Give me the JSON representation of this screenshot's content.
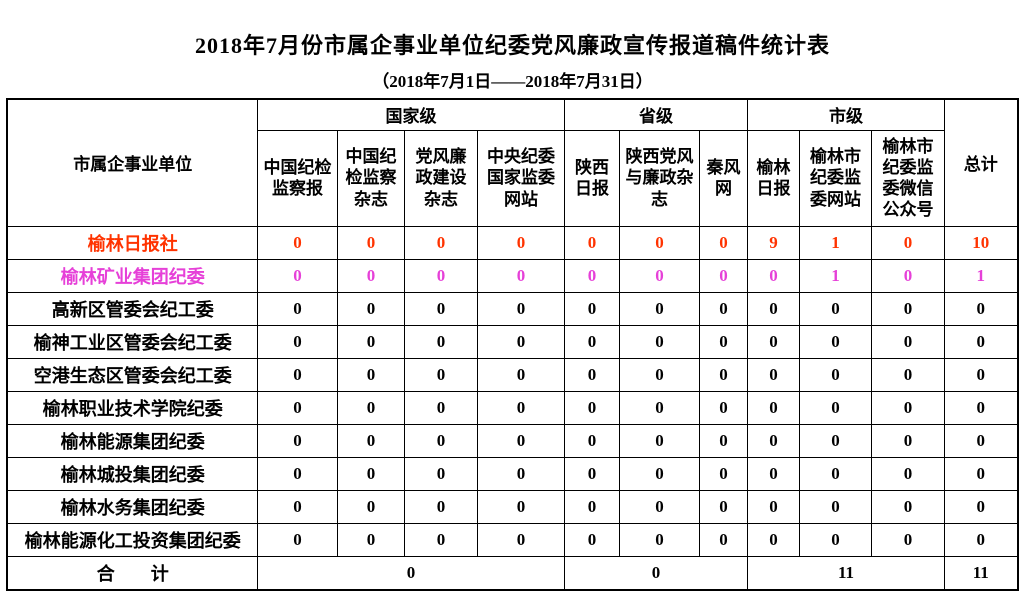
{
  "title": "2018年7月份市属企事业单位纪委党风廉政宣传报道稿件统计表",
  "subtitle": "（2018年7月1日——2018年7月31日）",
  "colors": {
    "row_highlight_red": "#FF3300",
    "row_highlight_magenta": "#E640D8",
    "text_default": "#000000"
  },
  "table": {
    "unit_header": "市属企事业单位",
    "total_header": "总计",
    "groups": [
      {
        "label": "国家级",
        "columns": [
          "中国纪检监察报",
          "中国纪检监察杂志",
          "党风廉政建设杂志",
          "中央纪委国家监委网站"
        ]
      },
      {
        "label": "省级",
        "columns": [
          "陕西日报",
          "陕西党风与廉政杂志",
          "秦风网"
        ]
      },
      {
        "label": "市级",
        "columns": [
          "榆林日报",
          "榆林市纪委监委网站",
          "榆林市纪委监委微信公众号"
        ]
      }
    ],
    "rows": [
      {
        "name": "榆林日报社",
        "values": [
          0,
          0,
          0,
          0,
          0,
          0,
          0,
          9,
          1,
          0
        ],
        "total": 10,
        "color": "#FF3300"
      },
      {
        "name": "榆林矿业集团纪委",
        "values": [
          0,
          0,
          0,
          0,
          0,
          0,
          0,
          0,
          1,
          0
        ],
        "total": 1,
        "color": "#E640D8"
      },
      {
        "name": "高新区管委会纪工委",
        "values": [
          0,
          0,
          0,
          0,
          0,
          0,
          0,
          0,
          0,
          0
        ],
        "total": 0,
        "color": "#000000"
      },
      {
        "name": "榆神工业区管委会纪工委",
        "values": [
          0,
          0,
          0,
          0,
          0,
          0,
          0,
          0,
          0,
          0
        ],
        "total": 0,
        "color": "#000000"
      },
      {
        "name": "空港生态区管委会纪工委",
        "values": [
          0,
          0,
          0,
          0,
          0,
          0,
          0,
          0,
          0,
          0
        ],
        "total": 0,
        "color": "#000000"
      },
      {
        "name": "榆林职业技术学院纪委",
        "values": [
          0,
          0,
          0,
          0,
          0,
          0,
          0,
          0,
          0,
          0
        ],
        "total": 0,
        "color": "#000000"
      },
      {
        "name": "榆林能源集团纪委",
        "values": [
          0,
          0,
          0,
          0,
          0,
          0,
          0,
          0,
          0,
          0
        ],
        "total": 0,
        "color": "#000000"
      },
      {
        "name": "榆林城投集团纪委",
        "values": [
          0,
          0,
          0,
          0,
          0,
          0,
          0,
          0,
          0,
          0
        ],
        "total": 0,
        "color": "#000000"
      },
      {
        "name": "榆林水务集团纪委",
        "values": [
          0,
          0,
          0,
          0,
          0,
          0,
          0,
          0,
          0,
          0
        ],
        "total": 0,
        "color": "#000000"
      },
      {
        "name": "榆林能源化工投资集团纪委",
        "values": [
          0,
          0,
          0,
          0,
          0,
          0,
          0,
          0,
          0,
          0
        ],
        "total": 0,
        "color": "#000000"
      }
    ],
    "summary": {
      "label": "合　　计",
      "group_totals": [
        0,
        0,
        11
      ],
      "grand_total": 11
    }
  }
}
